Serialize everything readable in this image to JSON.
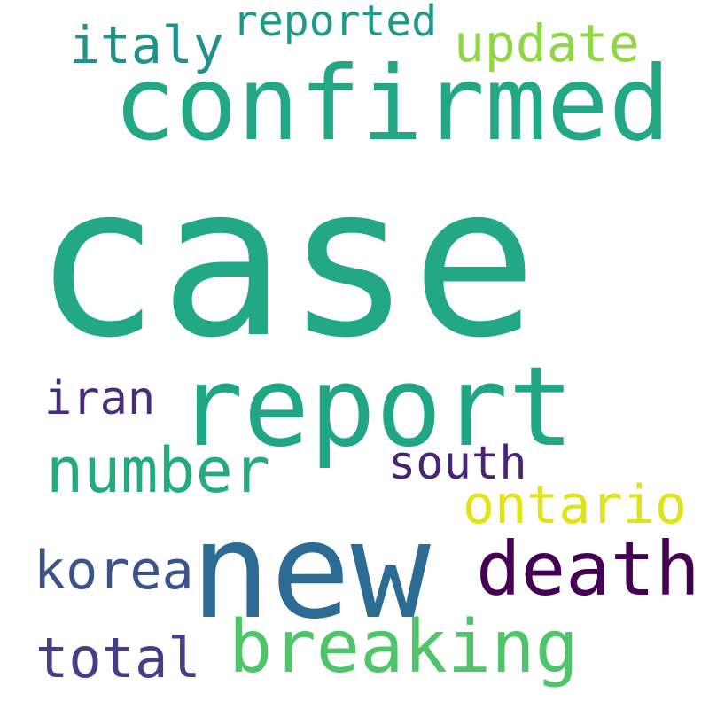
{
  "words": {
    "case": {
      "text": "case",
      "color": "#22a884"
    },
    "confirmed": {
      "text": "confirmed",
      "color": "#22a884"
    },
    "report": {
      "text": "report",
      "color": "#21a685"
    },
    "new": {
      "text": "new",
      "color": "#2c6b94"
    },
    "death": {
      "text": "death",
      "color": "#440154"
    },
    "breaking": {
      "text": "breaking",
      "color": "#4fc46a"
    },
    "number": {
      "text": "number",
      "color": "#25ab82"
    },
    "update": {
      "text": "update",
      "color": "#8fd744"
    },
    "italy": {
      "text": "italy",
      "color": "#21918c"
    },
    "reported": {
      "text": "reported",
      "color": "#1f9a8a"
    },
    "ontario": {
      "text": "ontario",
      "color": "#dfe318"
    },
    "south": {
      "text": "south",
      "color": "#482475"
    },
    "korea": {
      "text": "korea",
      "color": "#3b528b"
    },
    "total": {
      "text": "total",
      "color": "#433e85"
    },
    "iran": {
      "text": "iran",
      "color": "#472d7b"
    }
  }
}
